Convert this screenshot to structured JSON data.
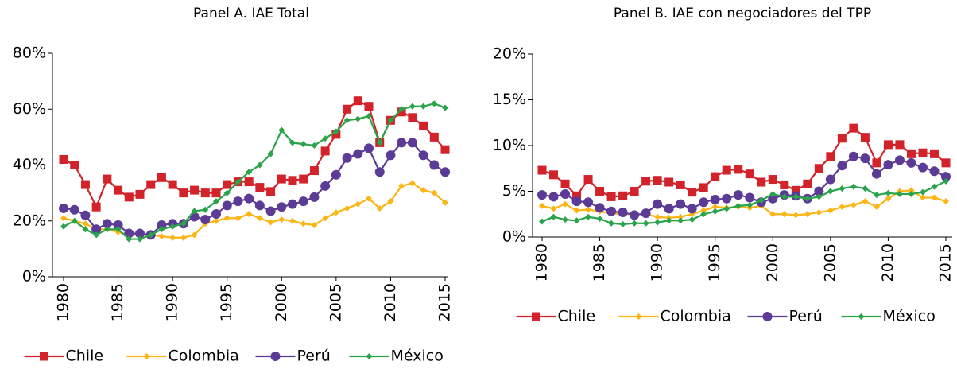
{
  "chart_data": [
    {
      "type": "line",
      "title": "Panel A. IAE Total",
      "x": [
        1980,
        1981,
        1982,
        1983,
        1984,
        1985,
        1986,
        1987,
        1988,
        1989,
        1990,
        1991,
        1992,
        1993,
        1994,
        1995,
        1996,
        1997,
        1998,
        1999,
        2000,
        2001,
        2002,
        2003,
        2004,
        2005,
        2006,
        2007,
        2008,
        2009,
        2010,
        2011,
        2012,
        2013,
        2014,
        2015
      ],
      "xlim": [
        1980,
        2015
      ],
      "xticks": [
        1980,
        1985,
        1990,
        1995,
        2000,
        2005,
        2010,
        2015
      ],
      "ylim": [
        0,
        80
      ],
      "yticks": [
        {
          "value": 0,
          "label": "0%"
        },
        {
          "value": 20,
          "label": "20%"
        },
        {
          "value": 40,
          "label": "40%"
        },
        {
          "value": 60,
          "label": "60%"
        },
        {
          "value": 80,
          "label": "80%"
        }
      ],
      "legend": "bottom",
      "series": [
        {
          "name": "Chile",
          "color": "#d2232a",
          "marker": "square",
          "values": [
            42,
            40,
            33,
            25,
            35,
            31,
            28.5,
            29.5,
            33,
            35.5,
            33,
            30,
            31,
            30,
            30,
            33,
            34,
            34,
            32,
            30.5,
            35,
            34.5,
            35,
            38,
            45,
            51,
            60,
            63,
            61,
            48,
            56,
            59,
            57,
            54,
            50,
            45.5
          ]
        },
        {
          "name": "Colombia",
          "color": "#fdb515",
          "marker": "diamond",
          "values": [
            21,
            20,
            19,
            17,
            17,
            16,
            15,
            15,
            15,
            14.5,
            14,
            14,
            15,
            19,
            20,
            21,
            21,
            22.5,
            21,
            19.5,
            20.5,
            20,
            19,
            18.5,
            21,
            23,
            24.5,
            26,
            28,
            24.5,
            27,
            32.5,
            33.5,
            31,
            30,
            26.5
          ]
        },
        {
          "name": "Perú",
          "color": "#5b3b96",
          "marker": "circle",
          "values": [
            24.5,
            24,
            22,
            17,
            19,
            18.5,
            15.5,
            15.5,
            15,
            18.5,
            19,
            19,
            21.5,
            20.5,
            22.5,
            25.5,
            27,
            28,
            25.5,
            23.5,
            25,
            26,
            27,
            28.5,
            32.5,
            36.5,
            42.5,
            44,
            46,
            37.5,
            43.5,
            48,
            48,
            43.5,
            40,
            37.5
          ]
        },
        {
          "name": "México",
          "color": "#2aa44a",
          "marker": "diamond",
          "values": [
            18,
            20,
            17,
            15,
            17,
            17,
            13.5,
            13.5,
            15,
            17,
            18,
            19,
            23.5,
            24,
            27,
            30,
            34,
            37.5,
            40,
            44,
            52.5,
            48,
            47.5,
            47,
            49.5,
            52,
            56,
            56.5,
            57.5,
            48,
            56,
            60,
            61,
            61,
            62,
            60.5
          ]
        }
      ]
    },
    {
      "type": "line",
      "title": "Panel B. IAE con negociadores del TPP",
      "x": [
        1980,
        1981,
        1982,
        1983,
        1984,
        1985,
        1986,
        1987,
        1988,
        1989,
        1990,
        1991,
        1992,
        1993,
        1994,
        1995,
        1996,
        1997,
        1998,
        1999,
        2000,
        2001,
        2002,
        2003,
        2004,
        2005,
        2006,
        2007,
        2008,
        2009,
        2010,
        2011,
        2012,
        2013,
        2014,
        2015
      ],
      "xlim": [
        1980,
        2015
      ],
      "xticks": [
        1980,
        1985,
        1990,
        1995,
        2000,
        2005,
        2010,
        2015
      ],
      "ylim": [
        0,
        20
      ],
      "yticks": [
        {
          "value": 0,
          "label": "0%"
        },
        {
          "value": 5,
          "label": "5%"
        },
        {
          "value": 10,
          "label": "10%"
        },
        {
          "value": 15,
          "label": "15%"
        },
        {
          "value": 20,
          "label": "20%"
        }
      ],
      "legend": "bottom",
      "series": [
        {
          "name": "Chile",
          "color": "#d2232a",
          "marker": "square",
          "values": [
            7.3,
            6.8,
            5.8,
            4.5,
            6.3,
            5.0,
            4.4,
            4.5,
            5.0,
            6.1,
            6.2,
            6.0,
            5.7,
            4.9,
            5.4,
            6.6,
            7.3,
            7.4,
            6.9,
            6.0,
            6.3,
            5.7,
            5.1,
            5.8,
            7.5,
            8.8,
            10.8,
            11.9,
            10.9,
            8.1,
            10.1,
            10.1,
            9.1,
            9.2,
            9.1,
            8.1
          ]
        },
        {
          "name": "Colombia",
          "color": "#fdb515",
          "marker": "diamond",
          "values": [
            3.4,
            3.1,
            3.6,
            2.9,
            3.0,
            2.8,
            2.6,
            2.5,
            2.5,
            2.5,
            2.2,
            2.1,
            2.2,
            2.5,
            2.9,
            3.3,
            3.2,
            3.3,
            3.2,
            3.4,
            2.5,
            2.5,
            2.4,
            2.5,
            2.7,
            2.9,
            3.3,
            3.5,
            3.9,
            3.3,
            4.2,
            5.0,
            5.1,
            4.3,
            4.3,
            3.9
          ]
        },
        {
          "name": "Perú",
          "color": "#5b3b96",
          "marker": "circle",
          "values": [
            4.6,
            4.4,
            4.7,
            3.9,
            3.8,
            3.2,
            2.8,
            2.7,
            2.4,
            2.6,
            3.6,
            3.1,
            3.6,
            3.1,
            3.8,
            4.1,
            4.2,
            4.6,
            4.3,
            3.8,
            4.2,
            4.6,
            4.5,
            4.2,
            5.0,
            6.3,
            7.8,
            8.8,
            8.6,
            6.9,
            7.9,
            8.4,
            8.1,
            7.6,
            7.2,
            6.6
          ]
        },
        {
          "name": "México",
          "color": "#2aa44a",
          "marker": "diamond",
          "values": [
            1.7,
            2.2,
            1.9,
            1.8,
            2.2,
            2.0,
            1.5,
            1.4,
            1.5,
            1.5,
            1.6,
            1.8,
            1.8,
            1.9,
            2.5,
            2.8,
            3.1,
            3.4,
            3.5,
            4.0,
            4.7,
            4.4,
            4.4,
            4.2,
            4.4,
            5.0,
            5.3,
            5.5,
            5.3,
            4.6,
            4.8,
            4.7,
            4.7,
            4.9,
            5.5,
            6.1
          ]
        }
      ]
    }
  ]
}
